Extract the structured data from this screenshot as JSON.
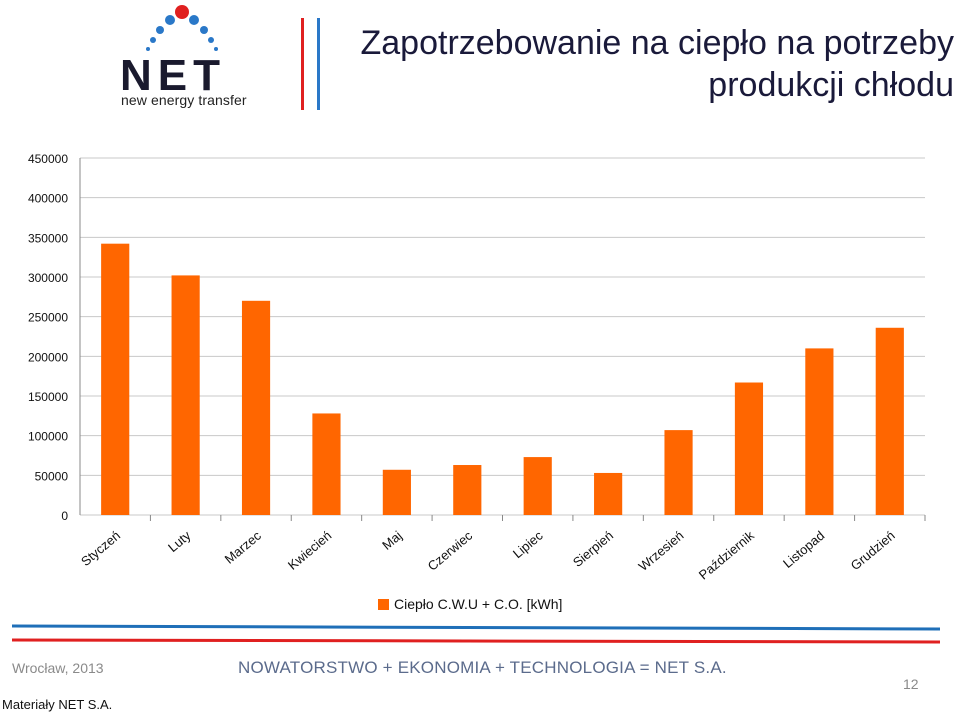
{
  "logo": {
    "wordmark": "NET",
    "tagline": "new energy transfer"
  },
  "title_line1": "Zapotrzebowanie na ciepło na potrzeby",
  "title_line2": "produkcji chłodu",
  "colors": {
    "bar": "#ff6600",
    "blue": "#1f6fb8",
    "red": "#e02020",
    "grid": "#c8c8c8"
  },
  "chart_data": {
    "type": "bar",
    "categories": [
      "Styczeń",
      "Luty",
      "Marzec",
      "Kwiecień",
      "Maj",
      "Czerwiec",
      "Lipiec",
      "Sierpień",
      "Wrzesień",
      "Październik",
      "Listopad",
      "Grudzień"
    ],
    "series": [
      {
        "name": "Ciepło C.W.U + C.O. [kWh]",
        "values": [
          342000,
          302000,
          270000,
          128000,
          57000,
          63000,
          73000,
          53000,
          107000,
          167000,
          210000,
          236000
        ]
      }
    ],
    "ylim": [
      0,
      450000
    ],
    "yticks": [
      "0",
      "50000",
      "100000",
      "150000",
      "200000",
      "250000",
      "300000",
      "350000",
      "400000",
      "450000"
    ],
    "grid": true,
    "legend": "bottom"
  },
  "footer": {
    "left": "Wrocław, 2013",
    "center": "NOWATORSTWO + EKONOMIA + TECHNOLOGIA = NET S.A.",
    "page": "12",
    "materials": "Materiały NET S.A."
  }
}
